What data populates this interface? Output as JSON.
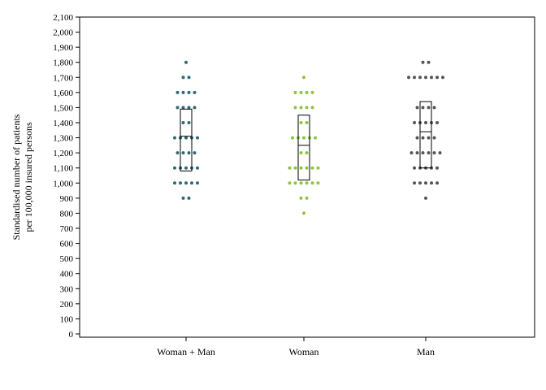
{
  "chart_data": {
    "type": "scatter",
    "ylabel": [
      "Standardised number of patients",
      "per 100,000 insured persons"
    ],
    "ylim": [
      0,
      2100
    ],
    "yticks": [
      0,
      100,
      200,
      300,
      400,
      500,
      600,
      700,
      800,
      900,
      1000,
      1100,
      1200,
      1300,
      1400,
      1500,
      1600,
      1700,
      1800,
      1900,
      2000,
      2100
    ],
    "ytick_labels": [
      "0",
      "100",
      "200",
      "300",
      "400",
      "500",
      "600",
      "700",
      "800",
      "900",
      "1,000",
      "1,100",
      "1,200",
      "1,300",
      "1,400",
      "1,500",
      "1,600",
      "1,700",
      "1,800",
      "1,900",
      "2,000",
      "2,100"
    ],
    "categories": [
      "Woman + Man",
      "Woman",
      "Man"
    ],
    "grid": false,
    "series": [
      {
        "color": "#2d6b72",
        "levels": [
          {
            "y": 900,
            "n": 2
          },
          {
            "y": 1000,
            "n": 5
          },
          {
            "y": 1100,
            "n": 5
          },
          {
            "y": 1200,
            "n": 4
          },
          {
            "y": 1300,
            "n": 5
          },
          {
            "y": 1400,
            "n": 2
          },
          {
            "y": 1500,
            "n": 4
          },
          {
            "y": 1600,
            "n": 4
          },
          {
            "y": 1700,
            "n": 2
          },
          {
            "y": 1800,
            "n": 1
          }
        ],
        "box": {
          "q1": 1080,
          "median": 1310,
          "q3": 1490
        }
      },
      {
        "color": "#8cc63e",
        "levels": [
          {
            "y": 800,
            "n": 1
          },
          {
            "y": 900,
            "n": 2
          },
          {
            "y": 1000,
            "n": 6
          },
          {
            "y": 1100,
            "n": 6
          },
          {
            "y": 1200,
            "n": 2
          },
          {
            "y": 1300,
            "n": 5
          },
          {
            "y": 1400,
            "n": 2
          },
          {
            "y": 1500,
            "n": 4
          },
          {
            "y": 1600,
            "n": 4
          },
          {
            "y": 1700,
            "n": 1
          }
        ],
        "box": {
          "q1": 1020,
          "median": 1250,
          "q3": 1450
        }
      },
      {
        "color": "#555555",
        "levels": [
          {
            "y": 900,
            "n": 1
          },
          {
            "y": 1000,
            "n": 5
          },
          {
            "y": 1100,
            "n": 5
          },
          {
            "y": 1200,
            "n": 6
          },
          {
            "y": 1300,
            "n": 4
          },
          {
            "y": 1400,
            "n": 5
          },
          {
            "y": 1500,
            "n": 4
          },
          {
            "y": 1700,
            "n": 7
          },
          {
            "y": 1800,
            "n": 2
          }
        ],
        "box": {
          "q1": 1100,
          "median": 1340,
          "q3": 1540
        }
      }
    ]
  }
}
